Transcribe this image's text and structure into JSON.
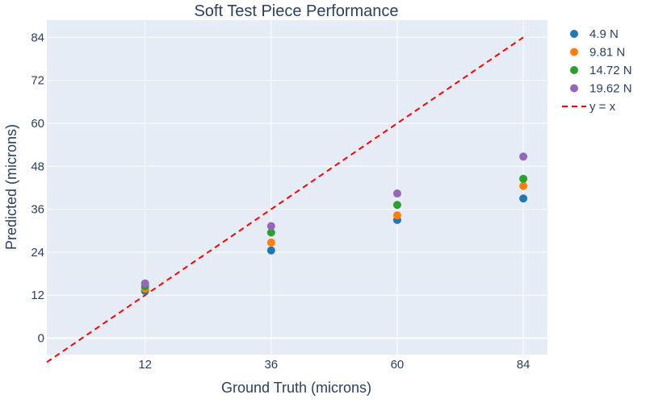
{
  "chart_data": {
    "type": "scatter",
    "title": "Soft Test Piece Performance",
    "xlabel": "Ground Truth (microns)",
    "ylabel": "Predicted (microns)",
    "xlim": [
      -6.7,
      88.6
    ],
    "ylim": [
      -4.6,
      88.8
    ],
    "xticks": [
      12,
      36,
      60,
      84
    ],
    "yticks": [
      0,
      12,
      24,
      36,
      48,
      60,
      72,
      84
    ],
    "grid": true,
    "legend_position": "top-right, outside plot",
    "x": [
      12,
      36,
      60,
      84
    ],
    "series": [
      {
        "name": "4.9 N",
        "color": "#1f77b4",
        "values": [
          13.2,
          24.5,
          33.0,
          39.0
        ]
      },
      {
        "name": "9.81 N",
        "color": "#ff7f0e",
        "values": [
          13.8,
          26.7,
          34.3,
          42.5
        ]
      },
      {
        "name": "14.72 N",
        "color": "#2ca02c",
        "values": [
          14.5,
          29.5,
          37.2,
          44.5
        ]
      },
      {
        "name": "19.62 N",
        "color": "#9467bd",
        "values": [
          15.3,
          31.3,
          40.4,
          50.7
        ]
      }
    ],
    "reference_line": {
      "name": "y = x",
      "color": "#ff0000",
      "style": "dashed",
      "x": [
        -6.7,
        84
      ],
      "y": [
        -6.7,
        84
      ]
    },
    "plot_background": "#e5ecf6"
  }
}
